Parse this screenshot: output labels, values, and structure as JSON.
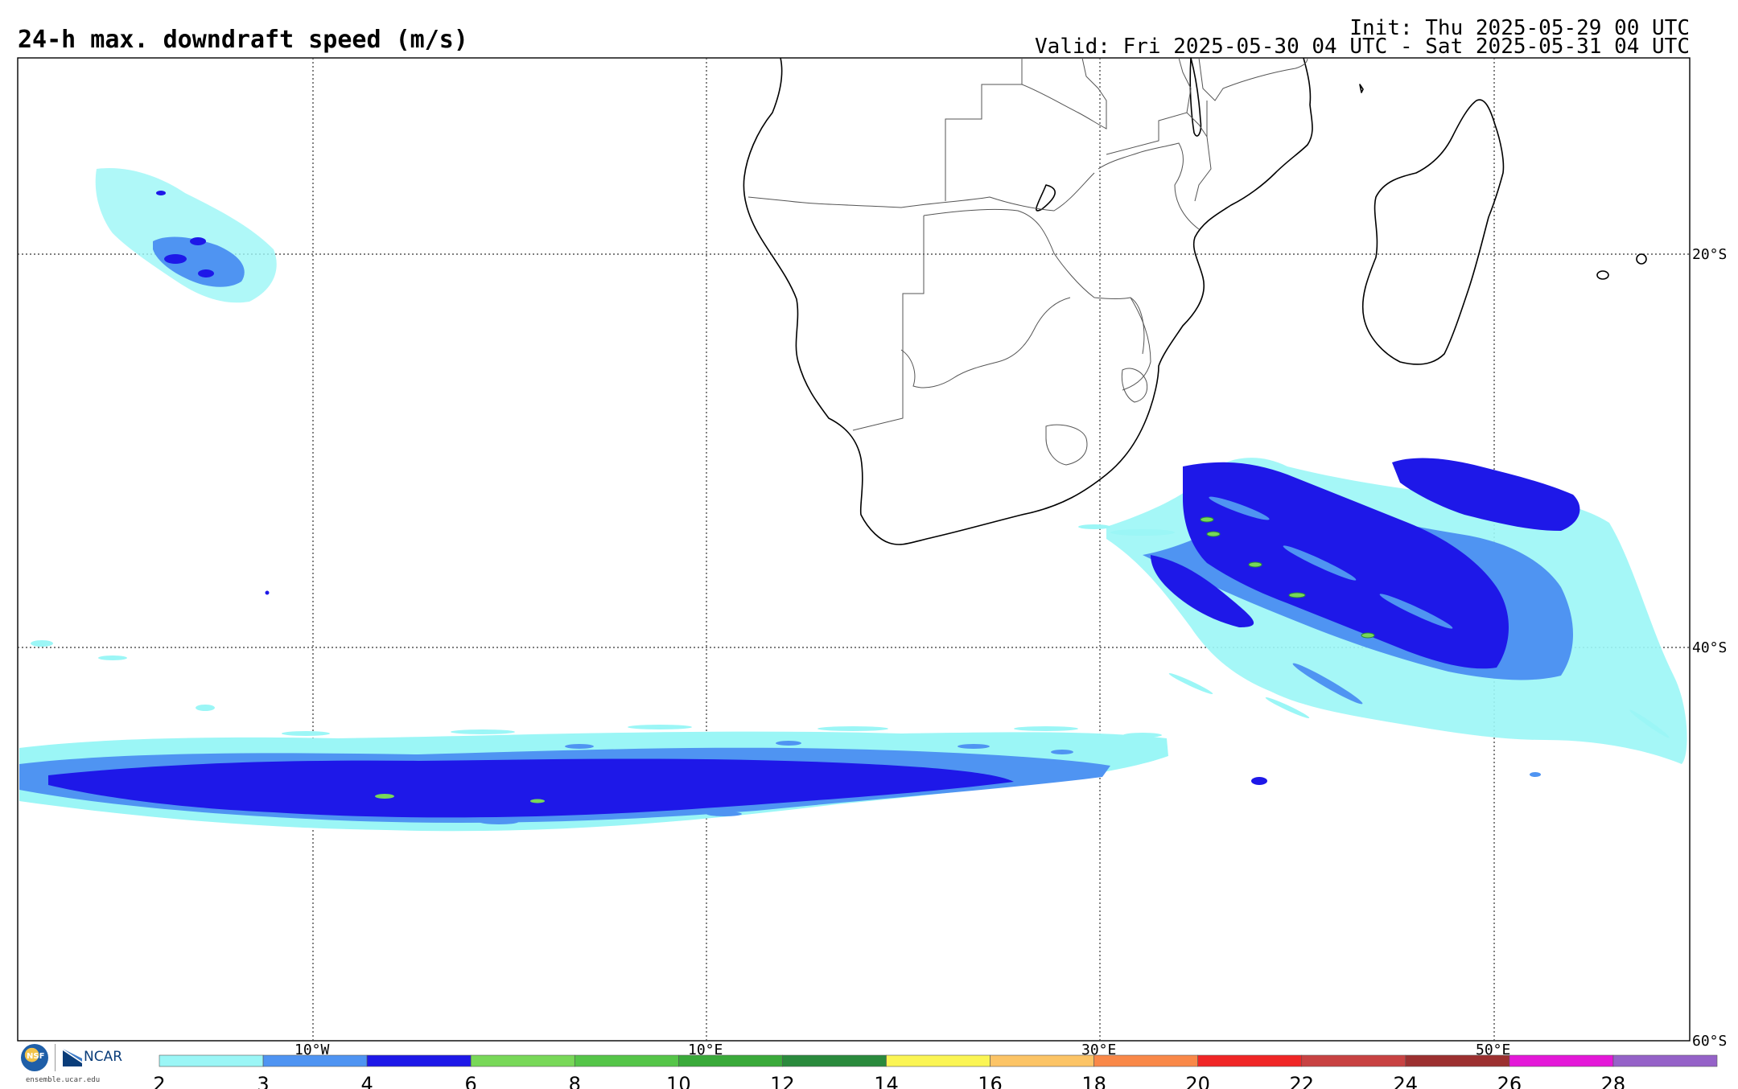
{
  "header": {
    "title": "24-h max. downdraft speed (m/s)",
    "init": "Init: Thu 2025-05-29 00 UTC",
    "valid": "Valid: Fri 2025-05-30 04 UTC - Sat 2025-05-31 04 UTC"
  },
  "map": {
    "lon_labels": [
      "10°W",
      "10°E",
      "30°E",
      "50°E"
    ],
    "lat_labels": [
      "20°S",
      "40°S",
      "60°S"
    ]
  },
  "colorbar": {
    "labels": [
      "2",
      "3",
      "4",
      "6",
      "8",
      "10",
      "12",
      "14",
      "16",
      "18",
      "20",
      "22",
      "24",
      "26",
      "28"
    ],
    "colors": [
      "#9bf6f6",
      "#4f94f2",
      "#1e18e8",
      "#78d858",
      "#55c548",
      "#3aaa3a",
      "#2a8a3c",
      "#fbf554",
      "#fcc466",
      "#f98848",
      "#f02626",
      "#c84242",
      "#9c3030",
      "#e418d8",
      "#9562c8"
    ]
  },
  "logos": {
    "nsf": "NSF",
    "ncar": "NCAR",
    "site": "ensemble.ucar.edu"
  },
  "icons": [
    "nsf-logo-icon",
    "ncar-logo-icon"
  ]
}
